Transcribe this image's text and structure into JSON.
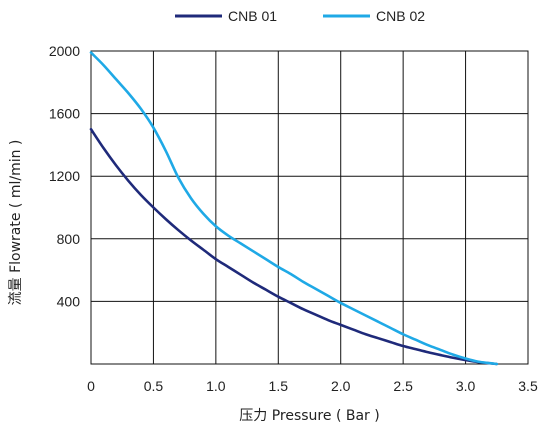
{
  "chart_data": {
    "type": "line",
    "xlabel": "压力 Pressure ( Bar )",
    "ylabel": "流量 Flowrate ( ml/min )",
    "xlim": [
      0,
      3.5
    ],
    "ylim": [
      0,
      2000
    ],
    "xticks": [
      "0",
      "0.5",
      "1.0",
      "1.5",
      "2.0",
      "2.5",
      "3.0",
      "3.5"
    ],
    "yticks": [
      "400",
      "800",
      "1200",
      "1600",
      "2000"
    ],
    "grid": true,
    "legend_position": "top-center",
    "series": [
      {
        "name": "CNB 01",
        "color": "#1f2a7a",
        "x": [
          0,
          0.1,
          0.2,
          0.3,
          0.4,
          0.5,
          0.6,
          0.7,
          0.8,
          0.9,
          1.0,
          1.1,
          1.2,
          1.3,
          1.4,
          1.5,
          1.6,
          1.7,
          1.8,
          1.9,
          2.0,
          2.1,
          2.2,
          2.3,
          2.4,
          2.5,
          2.6,
          2.7,
          2.8,
          2.9,
          3.0,
          3.1,
          3.2,
          3.25
        ],
        "y": [
          1500,
          1380,
          1270,
          1170,
          1080,
          1000,
          925,
          855,
          790,
          730,
          670,
          620,
          570,
          520,
          475,
          430,
          390,
          350,
          315,
          280,
          250,
          220,
          190,
          165,
          140,
          115,
          95,
          75,
          57,
          40,
          25,
          12,
          4,
          0
        ]
      },
      {
        "name": "CNB 02",
        "color": "#1fa9e6",
        "x": [
          0,
          0.1,
          0.2,
          0.3,
          0.4,
          0.5,
          0.6,
          0.7,
          0.8,
          0.9,
          1.0,
          1.1,
          1.2,
          1.3,
          1.4,
          1.5,
          1.6,
          1.7,
          1.8,
          1.9,
          2.0,
          2.1,
          2.2,
          2.3,
          2.4,
          2.5,
          2.6,
          2.7,
          2.8,
          2.9,
          3.0,
          3.1,
          3.2,
          3.25
        ],
        "y": [
          1990,
          1910,
          1820,
          1730,
          1630,
          1510,
          1360,
          1190,
          1060,
          960,
          880,
          820,
          770,
          720,
          670,
          620,
          575,
          525,
          480,
          435,
          390,
          350,
          310,
          270,
          230,
          190,
          155,
          120,
          90,
          60,
          35,
          15,
          5,
          0
        ]
      }
    ]
  }
}
